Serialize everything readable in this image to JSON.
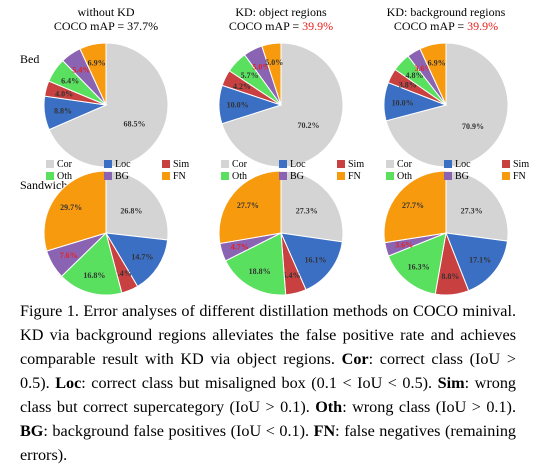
{
  "colors": {
    "Cor": "#d4d4d4",
    "Loc": "#3b6fc4",
    "Sim": "#c94040",
    "Oth": "#59e05f",
    "BG": "#8a63b3",
    "FN": "#f89a0e",
    "highlight": "#e8211c"
  },
  "legend": {
    "entries": [
      {
        "key": "Cor",
        "label": "Cor"
      },
      {
        "key": "Loc",
        "label": "Loc"
      },
      {
        "key": "Sim",
        "label": "Sim"
      },
      {
        "key": "Oth",
        "label": "Oth"
      },
      {
        "key": "BG",
        "label": "BG"
      },
      {
        "key": "FN",
        "label": "FN"
      }
    ]
  },
  "columns": [
    {
      "title": "without KD",
      "map_prefix": "COCO mAP = ",
      "map_value": "37.7%",
      "map_highlight": false
    },
    {
      "title": "KD: object regions",
      "map_prefix": "COCO mAP = ",
      "map_value": "39.9%",
      "map_highlight": true
    },
    {
      "title": "KD: background regions",
      "map_prefix": "COCO mAP = ",
      "map_value": "39.9%",
      "map_highlight": true
    }
  ],
  "rows": [
    {
      "label": "Bed"
    },
    {
      "label": "Sandwich"
    }
  ],
  "chart_data": [
    {
      "type": "pie",
      "row": "Bed",
      "column": "without KD",
      "slices": [
        {
          "key": "Cor",
          "value": 68.5,
          "label": "68.5%"
        },
        {
          "key": "Loc",
          "value": 8.8,
          "label": "8.8%"
        },
        {
          "key": "Sim",
          "value": 4.0,
          "label": "4.0%"
        },
        {
          "key": "Oth",
          "value": 6.4,
          "label": "6.4%"
        },
        {
          "key": "BG",
          "value": 5.4,
          "label": "5.4%"
        },
        {
          "key": "FN",
          "value": 6.9,
          "label": "6.9%"
        }
      ]
    },
    {
      "type": "pie",
      "row": "Bed",
      "column": "KD: object regions",
      "slices": [
        {
          "key": "Cor",
          "value": 70.2,
          "label": "70.2%"
        },
        {
          "key": "Loc",
          "value": 10.0,
          "label": "10.0%"
        },
        {
          "key": "Sim",
          "value": 4.2,
          "label": "4.2%"
        },
        {
          "key": "Oth",
          "value": 5.7,
          "label": "5.7%"
        },
        {
          "key": "BG",
          "value": 5.0,
          "label": "5.0%"
        },
        {
          "key": "FN",
          "value": 5.0,
          "label": "5.0%"
        }
      ]
    },
    {
      "type": "pie",
      "row": "Bed",
      "column": "KD: background regions",
      "slices": [
        {
          "key": "Cor",
          "value": 70.9,
          "label": "70.9%"
        },
        {
          "key": "Loc",
          "value": 10.0,
          "label": "10.0%"
        },
        {
          "key": "Sim",
          "value": 3.8,
          "label": "3.8%"
        },
        {
          "key": "Oth",
          "value": 4.8,
          "label": "4.8%"
        },
        {
          "key": "BG",
          "value": 3.6,
          "label": "3.6%"
        },
        {
          "key": "FN",
          "value": 6.9,
          "label": "6.9%"
        }
      ]
    },
    {
      "type": "pie",
      "row": "Sandwich",
      "column": "without KD",
      "slices": [
        {
          "key": "Cor",
          "value": 26.8,
          "label": "26.8%"
        },
        {
          "key": "Loc",
          "value": 14.7,
          "label": "14.7%"
        },
        {
          "key": "Sim",
          "value": 4.4,
          "label": "4.4%"
        },
        {
          "key": "Oth",
          "value": 16.8,
          "label": "16.8%"
        },
        {
          "key": "BG",
          "value": 7.6,
          "label": "7.6%"
        },
        {
          "key": "FN",
          "value": 29.7,
          "label": "29.7%"
        }
      ]
    },
    {
      "type": "pie",
      "row": "Sandwich",
      "column": "KD: object regions",
      "slices": [
        {
          "key": "Cor",
          "value": 27.3,
          "label": "27.3%"
        },
        {
          "key": "Loc",
          "value": 16.1,
          "label": "16.1%"
        },
        {
          "key": "Sim",
          "value": 5.4,
          "label": "5.4%"
        },
        {
          "key": "Oth",
          "value": 18.8,
          "label": "18.8%"
        },
        {
          "key": "BG",
          "value": 4.7,
          "label": "4.7%"
        },
        {
          "key": "FN",
          "value": 27.7,
          "label": "27.7%"
        }
      ]
    },
    {
      "type": "pie",
      "row": "Sandwich",
      "column": "KD: background regions",
      "slices": [
        {
          "key": "Cor",
          "value": 27.3,
          "label": "27.3%"
        },
        {
          "key": "Loc",
          "value": 17.1,
          "label": "17.1%"
        },
        {
          "key": "Sim",
          "value": 8.8,
          "label": "8.8%"
        },
        {
          "key": "Oth",
          "value": 16.3,
          "label": "16.3%"
        },
        {
          "key": "BG",
          "value": 3.6,
          "label": "3.6%"
        },
        {
          "key": "FN",
          "value": 27.7,
          "label": "27.7%"
        }
      ]
    }
  ],
  "caption": {
    "intro": "Figure 1. Error analyses of different distillation methods on COCO minival. KD via background regions alleviates the false positive rate and achieves comparable result with KD via object regions.",
    "cor_term": "Cor",
    "cor_def": ": correct class (IoU > 0.5).",
    "loc_term": "Loc",
    "loc_def": ": correct class but misaligned box (0.1 < IoU < 0.5).",
    "sim_term": "Sim",
    "sim_def": ": wrong class but correct supercategory (IoU > 0.1).",
    "oth_term": "Oth",
    "oth_def": ": wrong class (IoU > 0.1).",
    "bg_term": "BG",
    "bg_def": ": background false positives (IoU < 0.1).",
    "fn_term": "FN",
    "fn_def": ": false negatives (remaining errors)."
  }
}
